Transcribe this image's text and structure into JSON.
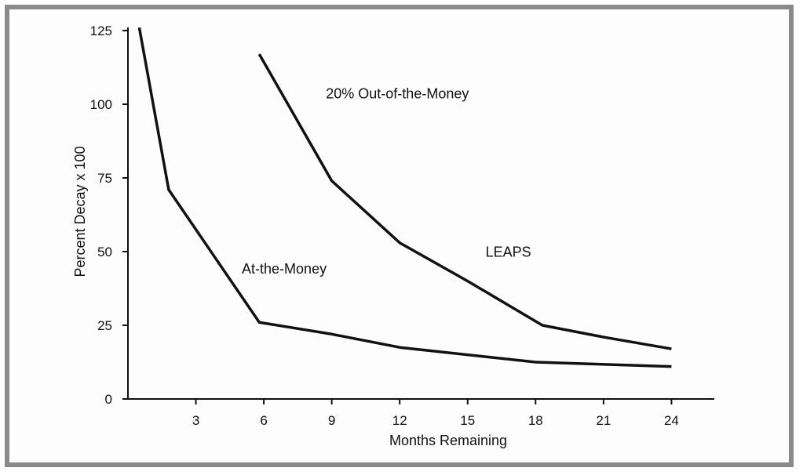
{
  "chart_data": {
    "type": "line",
    "title": "",
    "xlabel": "Months Remaining",
    "ylabel": "Percent Decay x 100",
    "xlim": [
      0,
      27
    ],
    "ylim": [
      0,
      125
    ],
    "x_ticks": [
      3,
      6,
      9,
      12,
      15,
      18,
      21,
      24
    ],
    "y_ticks": [
      0,
      25,
      50,
      75,
      100,
      125
    ],
    "grid": false,
    "legend": "none",
    "series": [
      {
        "name": "At-the-Money",
        "color": "#111111",
        "points": [
          [
            0.5,
            126
          ],
          [
            1.8,
            71
          ],
          [
            5.8,
            26
          ],
          [
            9,
            22
          ],
          [
            12,
            17.5
          ],
          [
            18,
            12.5
          ],
          [
            24,
            11
          ]
        ]
      },
      {
        "name": "20% Out-of-the-Money",
        "color": "#111111",
        "points": [
          [
            5.8,
            117
          ],
          [
            9,
            74
          ],
          [
            12,
            53
          ],
          [
            15,
            40
          ],
          [
            18.3,
            25
          ],
          [
            21,
            21
          ],
          [
            24,
            17
          ]
        ]
      }
    ],
    "annotations": [
      {
        "text": "20% Out-of-the-Money",
        "x": 11.9,
        "y": 102
      },
      {
        "text": "LEAPS",
        "x": 16.8,
        "y": 48.3
      },
      {
        "text": "At-the-Money",
        "x": 6.9,
        "y": 42.5
      }
    ]
  }
}
